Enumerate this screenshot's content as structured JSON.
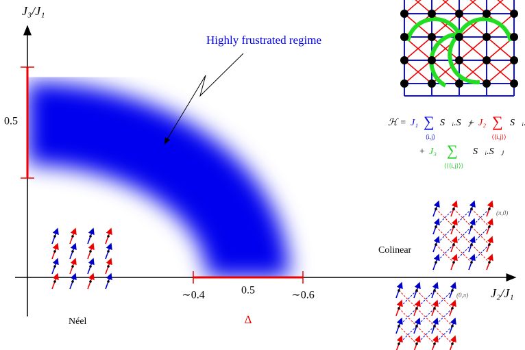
{
  "axes": {
    "y_label": "J₃/J₁",
    "x_label": "J₂/J₁",
    "y_tick": "0.5",
    "x_ticks": [
      "∼0.4",
      "0.5",
      "∼0.6"
    ]
  },
  "annotation": "Highly frustrated regime",
  "phases": {
    "neel": "Néel",
    "gap": "Δ",
    "colinear": "Colinear",
    "colinear_q1": "(π,0)",
    "colinear_q2": "(0,π)"
  },
  "hamiltonian": {
    "symbol": "ℋ =",
    "terms": [
      {
        "sign": "",
        "coupling": "J₁",
        "sum": "∑",
        "index": "⟨i,j⟩",
        "product": "S⃗ᵢ.S⃗ⱼ"
      },
      {
        "sign": "+",
        "coupling": "J₂",
        "sum": "∑",
        "index": "⟨⟨i,j⟩⟩",
        "product": "S⃗ᵢ.S⃗ⱼ"
      },
      {
        "sign": "+",
        "coupling": "J₃",
        "sum": "∑",
        "index": "⟨⟨⟨i,j⟩⟩⟩",
        "product": "S⃗ᵢ.S⃗ⱼ"
      }
    ]
  }
}
